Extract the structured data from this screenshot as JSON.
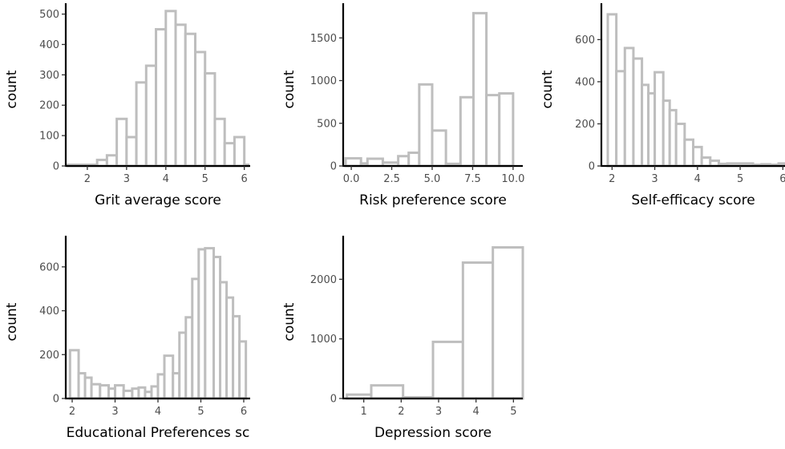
{
  "chart_data": [
    {
      "type": "histogram",
      "xlabel": "Grit average score",
      "ylabel": "count",
      "xlim": [
        1.45,
        6.15
      ],
      "ylim": [
        0,
        520
      ],
      "xticks": [
        2,
        3,
        4,
        5,
        6
      ],
      "yticks": [
        0,
        100,
        200,
        300,
        400,
        500
      ],
      "bar_fill": "#ffffff",
      "bar_stroke": "#bebebe",
      "bins": [
        [
          1.5,
          2.25,
          0
        ],
        [
          2.25,
          2.5,
          20
        ],
        [
          2.5,
          2.75,
          35
        ],
        [
          2.75,
          3.0,
          155
        ],
        [
          3.0,
          3.25,
          95
        ],
        [
          3.25,
          3.5,
          275
        ],
        [
          3.5,
          3.75,
          330
        ],
        [
          3.75,
          4.0,
          450
        ],
        [
          4.0,
          4.25,
          510
        ],
        [
          4.25,
          4.5,
          465
        ],
        [
          4.5,
          4.75,
          435
        ],
        [
          4.75,
          5.0,
          375
        ],
        [
          5.0,
          5.25,
          305
        ],
        [
          5.25,
          5.5,
          155
        ],
        [
          5.5,
          5.75,
          75
        ],
        [
          5.75,
          6.0,
          95
        ],
        [
          6.0,
          6.1,
          0
        ]
      ]
    },
    {
      "type": "histogram",
      "xlabel": "Risk preference score",
      "ylabel": "count",
      "xlim": [
        -0.5,
        10.6
      ],
      "ylim": [
        0,
        1850
      ],
      "xticks": [
        0.0,
        2.5,
        5.0,
        7.5,
        10.0
      ],
      "xtick_labels": [
        "0.0",
        "2.5",
        "5.0",
        "7.5",
        "10.0"
      ],
      "yticks": [
        0,
        500,
        1000,
        1500
      ],
      "bar_fill": "#ffffff",
      "bar_stroke": "#bebebe",
      "bins": [
        [
          -0.35,
          0.6,
          90
        ],
        [
          0.6,
          1.0,
          30
        ],
        [
          1.0,
          1.95,
          85
        ],
        [
          1.95,
          2.9,
          40
        ],
        [
          2.9,
          3.55,
          115
        ],
        [
          3.55,
          4.2,
          155
        ],
        [
          4.2,
          5.0,
          955
        ],
        [
          5.0,
          5.85,
          415
        ],
        [
          5.85,
          6.75,
          25
        ],
        [
          6.75,
          7.55,
          805
        ],
        [
          7.55,
          8.35,
          1790
        ],
        [
          8.35,
          9.15,
          830
        ],
        [
          9.15,
          10.0,
          850
        ]
      ]
    },
    {
      "type": "histogram",
      "xlabel": "Self-efficacy score",
      "ylabel": "count",
      "xlim": [
        1.75,
        6.05
      ],
      "ylim": [
        0,
        750
      ],
      "xticks": [
        2,
        3,
        4,
        5,
        6
      ],
      "yticks": [
        0,
        200,
        400,
        600
      ],
      "bar_fill": "#ffffff",
      "bar_stroke": "#bebebe",
      "bins": [
        [
          1.9,
          2.1,
          720
        ],
        [
          2.1,
          2.3,
          450
        ],
        [
          2.3,
          2.5,
          560
        ],
        [
          2.5,
          2.7,
          510
        ],
        [
          2.7,
          2.85,
          385
        ],
        [
          2.85,
          3.0,
          345
        ],
        [
          3.0,
          3.2,
          445
        ],
        [
          3.2,
          3.35,
          310
        ],
        [
          3.35,
          3.5,
          265
        ],
        [
          3.5,
          3.7,
          200
        ],
        [
          3.7,
          3.9,
          125
        ],
        [
          3.9,
          4.1,
          90
        ],
        [
          4.1,
          4.3,
          40
        ],
        [
          4.3,
          4.5,
          25
        ],
        [
          4.5,
          4.7,
          10
        ],
        [
          4.7,
          5.3,
          12
        ],
        [
          5.3,
          5.5,
          4
        ],
        [
          5.5,
          5.7,
          8
        ],
        [
          5.7,
          5.9,
          3
        ],
        [
          5.9,
          6.05,
          12
        ]
      ]
    },
    {
      "type": "histogram",
      "xlabel": "Educational Preferences sc",
      "ylabel": "count",
      "xlim": [
        1.85,
        6.15
      ],
      "ylim": [
        0,
        720
      ],
      "xticks": [
        2,
        3,
        4,
        5,
        6
      ],
      "yticks": [
        0,
        200,
        400,
        600
      ],
      "bar_fill": "#ffffff",
      "bar_stroke": "#bebebe",
      "bins": [
        [
          1.95,
          2.15,
          220
        ],
        [
          2.15,
          2.3,
          115
        ],
        [
          2.3,
          2.45,
          95
        ],
        [
          2.45,
          2.65,
          65
        ],
        [
          2.65,
          2.85,
          60
        ],
        [
          2.85,
          3.0,
          45
        ],
        [
          3.0,
          3.2,
          60
        ],
        [
          3.2,
          3.4,
          35
        ],
        [
          3.4,
          3.55,
          45
        ],
        [
          3.55,
          3.7,
          50
        ],
        [
          3.7,
          3.85,
          30
        ],
        [
          3.85,
          4.0,
          55
        ],
        [
          4.0,
          4.15,
          110
        ],
        [
          4.15,
          4.35,
          195
        ],
        [
          4.35,
          4.5,
          115
        ],
        [
          4.5,
          4.65,
          300
        ],
        [
          4.65,
          4.8,
          370
        ],
        [
          4.8,
          4.95,
          545
        ],
        [
          4.95,
          5.1,
          680
        ],
        [
          5.1,
          5.3,
          685
        ],
        [
          5.3,
          5.45,
          645
        ],
        [
          5.45,
          5.6,
          530
        ],
        [
          5.6,
          5.75,
          460
        ],
        [
          5.75,
          5.9,
          375
        ],
        [
          5.9,
          6.05,
          260
        ]
      ]
    },
    {
      "type": "histogram",
      "xlabel": "Depression score",
      "ylabel": "count",
      "xlim": [
        0.45,
        5.25
      ],
      "ylim": [
        0,
        2650
      ],
      "xticks": [
        1,
        2,
        3,
        4,
        5
      ],
      "yticks": [
        0,
        1000,
        2000
      ],
      "bar_fill": "#ffffff",
      "bar_stroke": "#bebebe",
      "bins": [
        [
          0.55,
          1.2,
          65
        ],
        [
          1.2,
          2.05,
          220
        ],
        [
          2.05,
          2.85,
          0
        ],
        [
          2.85,
          3.65,
          950
        ],
        [
          3.65,
          4.45,
          2280
        ],
        [
          4.45,
          5.25,
          2535
        ]
      ]
    }
  ]
}
